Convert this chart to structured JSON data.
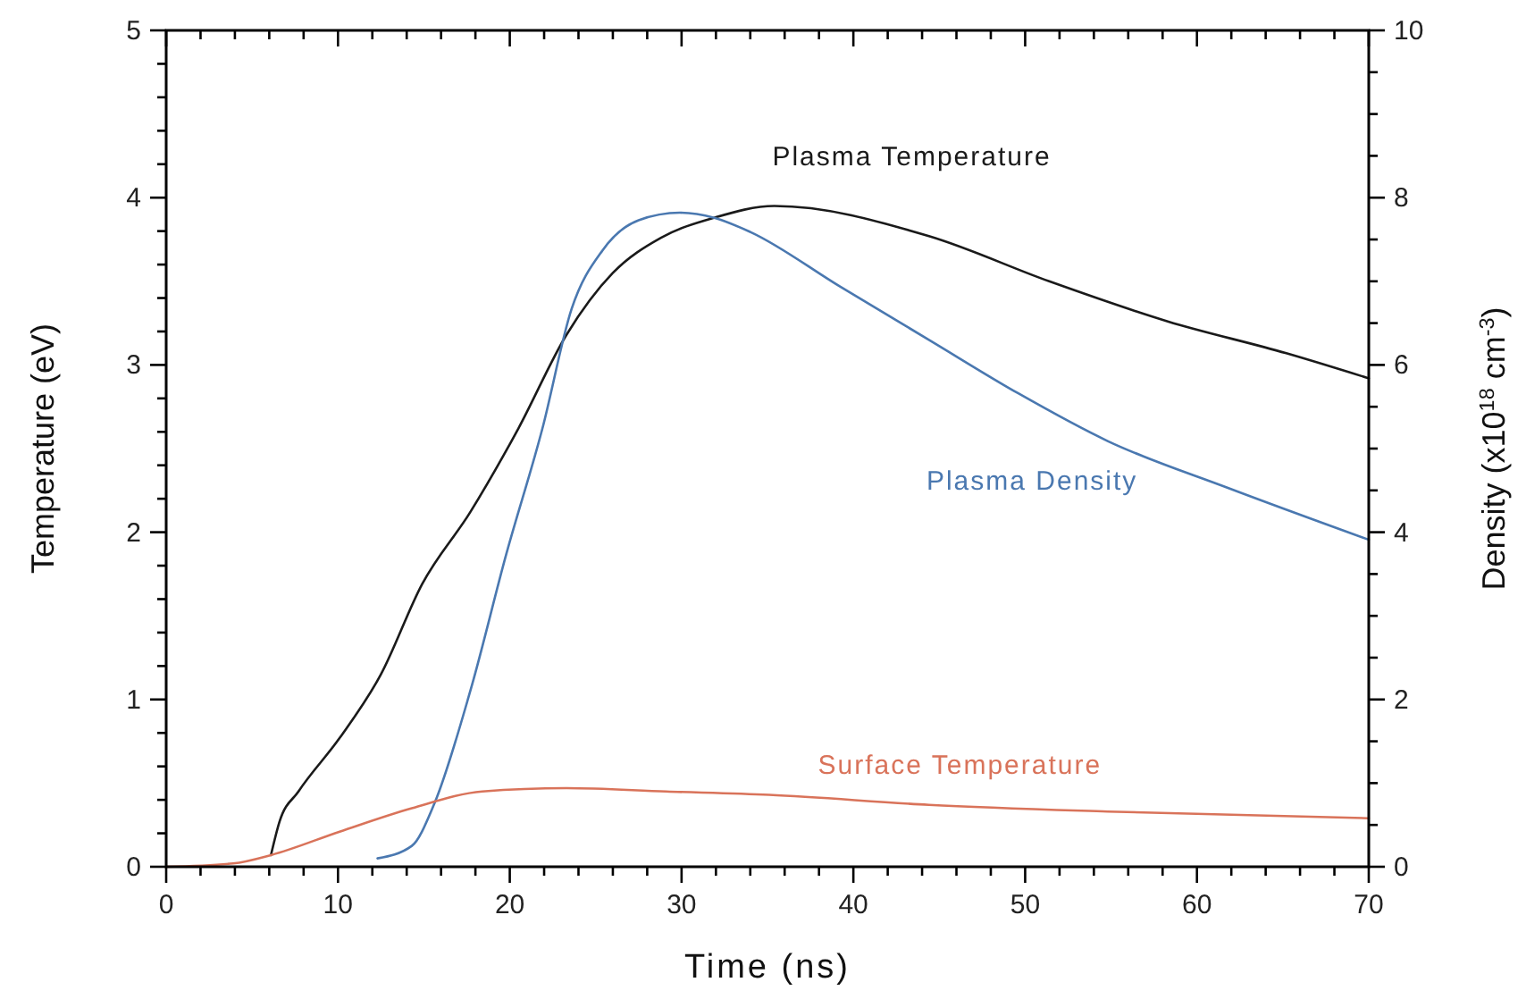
{
  "chart_data": {
    "type": "line",
    "xlabel": "Time (ns)",
    "ylabel": "Temperature (eV)",
    "y2label": "Density (x10$^{18}$ cm$^{-3}$)",
    "xlim": [
      0,
      70
    ],
    "xticks": [
      0,
      {
        "value": 2,
        "label": null
      },
      {
        "value": 4,
        "label": null
      },
      {
        "value": 6,
        "label": null
      },
      {
        "value": 8,
        "label": null
      },
      10,
      {
        "value": 12,
        "label": null
      },
      {
        "value": 14,
        "label": null
      },
      {
        "value": 16,
        "label": null
      },
      {
        "value": 18,
        "label": null
      },
      20,
      {
        "value": 22,
        "label": null
      },
      {
        "value": 24,
        "label": null
      },
      {
        "value": 26,
        "label": null
      },
      {
        "value": 28,
        "label": null
      },
      30,
      {
        "value": 32,
        "label": null
      },
      {
        "value": 34,
        "label": null
      },
      {
        "value": 36,
        "label": null
      },
      {
        "value": 38,
        "label": null
      },
      40,
      {
        "value": 42,
        "label": null
      },
      {
        "value": 44,
        "label": null
      },
      {
        "value": 46,
        "label": null
      },
      {
        "value": 48,
        "label": null
      },
      50,
      {
        "value": 52,
        "label": null
      },
      {
        "value": 54,
        "label": null
      },
      {
        "value": 56,
        "label": null
      },
      {
        "value": 58,
        "label": null
      },
      60,
      {
        "value": 62,
        "label": null
      },
      {
        "value": 64,
        "label": null
      },
      {
        "value": 66,
        "label": null
      },
      {
        "value": 68,
        "label": null
      },
      70
    ],
    "ylim": [
      0,
      5
    ],
    "yticks": [
      0,
      {
        "value": 0.2,
        "label": null
      },
      {
        "value": 0.4,
        "label": null
      },
      {
        "value": 0.6,
        "label": null
      },
      {
        "value": 0.8,
        "label": null
      },
      1,
      {
        "value": 1.2,
        "label": null
      },
      {
        "value": 1.4,
        "label": null
      },
      {
        "value": 1.6,
        "label": null
      },
      {
        "value": 1.8,
        "label": null
      },
      2,
      {
        "value": 2.2,
        "label": null
      },
      {
        "value": 2.4,
        "label": null
      },
      {
        "value": 2.6,
        "label": null
      },
      {
        "value": 2.8,
        "label": null
      },
      3,
      {
        "value": 3.2,
        "label": null
      },
      {
        "value": 3.4,
        "label": null
      },
      {
        "value": 3.6,
        "label": null
      },
      {
        "value": 3.8,
        "label": null
      },
      4,
      {
        "value": 4.2,
        "label": null
      },
      {
        "value": 4.4,
        "label": null
      },
      {
        "value": 4.6,
        "label": null
      },
      {
        "value": 4.8,
        "label": null
      },
      5
    ],
    "y2lim": [
      0,
      10
    ],
    "y2ticks": [
      0,
      {
        "value": 0.5,
        "label": null
      },
      {
        "value": 1,
        "label": null
      },
      {
        "value": 1.5,
        "label": null
      },
      2,
      {
        "value": 2.5,
        "label": null
      },
      {
        "value": 3,
        "label": null
      },
      {
        "value": 3.5,
        "label": null
      },
      4,
      {
        "value": 4.5,
        "label": null
      },
      {
        "value": 5,
        "label": null
      },
      {
        "value": 5.5,
        "label": null
      },
      6,
      {
        "value": 6.5,
        "label": null
      },
      {
        "value": 7,
        "label": null
      },
      {
        "value": 7.5,
        "label": null
      },
      8,
      {
        "value": 8.5,
        "label": null
      },
      {
        "value": 9,
        "label": null
      },
      {
        "value": 9.5,
        "label": null
      },
      10
    ],
    "grid": false,
    "series": [
      {
        "name": "Plasma Temperature",
        "color": "#1a1a1a",
        "x": [
          6.1,
          6.6,
          7.7,
          10.1,
          12.5,
          14.9,
          17.7,
          20.5,
          23.3,
          26.0,
          28.8,
          31.9,
          35.4,
          44.4,
          51.4,
          58.3,
          65.2,
          70
        ],
        "values": [
          0.07,
          0.27,
          0.45,
          0.77,
          1.15,
          1.69,
          2.12,
          2.62,
          3.18,
          3.55,
          3.76,
          3.88,
          3.95,
          3.77,
          3.5,
          3.26,
          3.07,
          2.92
        ]
      },
      {
        "name": "Plasma Density",
        "color": "#4a78b0",
        "axis": "y2",
        "x": [
          12.3,
          14.3,
          15.6,
          17.7,
          19.8,
          21.9,
          23.6,
          25.4,
          27.5,
          29.9,
          31.9,
          34.0,
          39.2,
          44.4,
          49.6,
          54.8,
          61.8,
          70
        ],
        "values": [
          0.1,
          0.25,
          0.75,
          2.1,
          3.74,
          5.24,
          6.67,
          7.37,
          7.73,
          7.82,
          7.76,
          7.59,
          6.94,
          6.3,
          5.66,
          5.09,
          4.53,
          3.91
        ]
      },
      {
        "name": "Surface Temperature",
        "color": "#d9735a",
        "x": [
          0,
          3.9,
          6.1,
          10.1,
          14.3,
          18.4,
          23.3,
          29.1,
          35.1,
          44.4,
          54.8,
          70
        ],
        "values": [
          0,
          0.02,
          0.07,
          0.21,
          0.35,
          0.45,
          0.47,
          0.45,
          0.43,
          0.37,
          0.33,
          0.29
        ]
      }
    ]
  }
}
